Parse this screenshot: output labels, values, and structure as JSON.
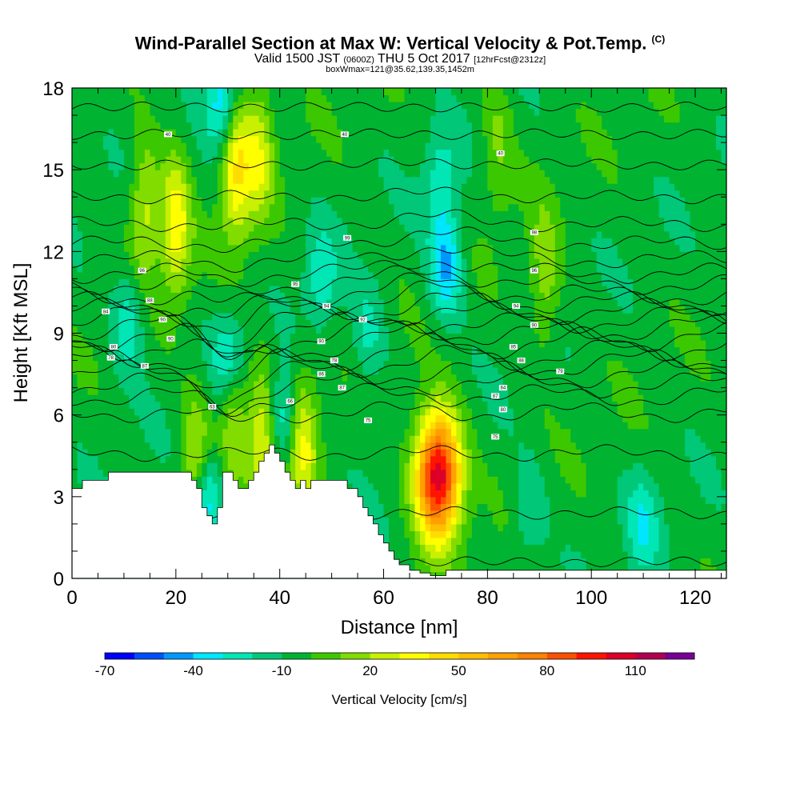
{
  "title": {
    "main": "Wind-Parallel Section at Max W: Vertical Velocity & Pot.Temp.",
    "copyright": "(C)",
    "valid_prefix": "Valid 1500 JST",
    "valid_zulu": "(0600Z)",
    "valid_date": "THU 5 Oct 2017",
    "forecast": "[12hrFcst@2312z]",
    "box": "boxWmax=121@35.62,139.35,1452m"
  },
  "chart_data": {
    "type": "heatmap",
    "xlabel": "Distance [nm]",
    "ylabel": "Height [Kft MSL]",
    "xlim": [
      0,
      126
    ],
    "ylim": [
      0,
      18
    ],
    "x_ticks": [
      0,
      20,
      40,
      60,
      80,
      100,
      120
    ],
    "y_ticks": [
      0,
      3,
      6,
      9,
      12,
      15,
      18
    ],
    "colorbar": {
      "label": "Vertical Velocity [cm/s]",
      "tick_labels": [
        -70,
        -40,
        -10,
        20,
        50,
        80,
        110
      ],
      "levels": [
        -70,
        -60,
        -50,
        -40,
        -30,
        -20,
        -10,
        0,
        10,
        20,
        30,
        40,
        50,
        60,
        70,
        80,
        90,
        100,
        110,
        120
      ],
      "colors": [
        "#0000ff",
        "#0050ff",
        "#0098ff",
        "#00e6ff",
        "#00e6b4",
        "#00c878",
        "#00b432",
        "#3cc800",
        "#82dc00",
        "#c8f000",
        "#ffff00",
        "#ffdc00",
        "#ffbe00",
        "#ffa000",
        "#ff8200",
        "#ff5000",
        "#ff1400",
        "#dc0028",
        "#b40050",
        "#780096"
      ]
    },
    "background_value": -5,
    "updrafts": [
      {
        "x": 70.5,
        "z": 3.8,
        "max": 118
      },
      {
        "x": 31.5,
        "z": 15.0,
        "max": 45
      },
      {
        "x": 31.0,
        "z": 6.5,
        "max": 35
      },
      {
        "x": 20.0,
        "z": 13.0,
        "max": 40
      },
      {
        "x": 14.0,
        "z": 13.5,
        "max": 30
      },
      {
        "x": 37.0,
        "z": 5.0,
        "max": 42
      },
      {
        "x": 44.5,
        "z": 4.8,
        "max": 35
      },
      {
        "x": 36.0,
        "z": 15.5,
        "max": 30
      },
      {
        "x": 24.0,
        "z": 4.0,
        "max": 35
      },
      {
        "x": 91.0,
        "z": 11.0,
        "max": 22
      },
      {
        "x": 82.0,
        "z": 16.0,
        "max": 16
      }
    ],
    "downdrafts": [
      {
        "x": 30.5,
        "z": 8.0,
        "min": -38
      },
      {
        "x": 72.0,
        "z": 11.5,
        "min": -38
      },
      {
        "x": 71.0,
        "z": 14.5,
        "min": -22
      },
      {
        "x": 11.0,
        "z": 9.5,
        "min": -25
      },
      {
        "x": 26.0,
        "z": 3.0,
        "min": -42
      },
      {
        "x": 40.0,
        "z": 5.8,
        "min": -35
      },
      {
        "x": 29.0,
        "z": 17.5,
        "min": -35
      },
      {
        "x": 48.0,
        "z": 11.0,
        "min": -22
      },
      {
        "x": 110.0,
        "z": 2.0,
        "min": -22
      },
      {
        "x": 88.0,
        "z": 2.5,
        "min": -16
      },
      {
        "x": 57.0,
        "z": 9.0,
        "min": -18
      }
    ],
    "terrain": {
      "x": [
        0,
        2,
        2,
        7,
        7,
        23,
        23,
        24,
        24,
        25,
        25,
        26,
        26,
        27,
        27,
        28,
        28,
        29,
        29,
        31,
        31,
        32,
        32,
        34,
        34,
        35,
        35,
        36,
        36,
        37,
        37,
        38,
        38,
        39,
        39,
        40,
        40,
        41,
        41,
        42,
        42,
        43,
        43,
        44,
        44,
        45,
        45,
        46,
        46,
        53,
        53,
        55,
        55,
        56,
        56,
        57,
        57,
        58,
        58,
        59,
        59,
        60,
        60,
        61,
        61,
        62,
        62,
        63,
        63,
        65,
        65,
        67,
        67,
        69,
        69,
        72,
        72,
        75,
        75,
        126
      ],
      "z": [
        3.3,
        3.3,
        3.6,
        3.6,
        3.9,
        3.9,
        3.6,
        3.6,
        3.3,
        3.3,
        2.6,
        2.6,
        2.3,
        2.3,
        2.0,
        2.0,
        2.6,
        2.6,
        3.9,
        3.9,
        3.6,
        3.6,
        3.3,
        3.3,
        3.6,
        3.6,
        3.9,
        3.9,
        4.3,
        4.3,
        4.6,
        4.6,
        4.9,
        4.9,
        4.6,
        4.6,
        4.3,
        4.3,
        3.9,
        3.9,
        3.6,
        3.6,
        3.3,
        3.3,
        3.6,
        3.6,
        3.3,
        3.3,
        3.6,
        3.6,
        3.3,
        3.3,
        3.0,
        3.0,
        2.6,
        2.6,
        2.3,
        2.3,
        2.0,
        2.0,
        1.6,
        1.6,
        1.3,
        1.3,
        1.0,
        1.0,
        0.7,
        0.7,
        0.5,
        0.5,
        0.3,
        0.3,
        0.2,
        0.2,
        0.1,
        0.1,
        0.3,
        0.3,
        0.3,
        0.3
      ]
    },
    "isentropes_z": [
      0.6,
      2.4,
      4.6,
      6.1,
      6.7,
      7.1,
      7.5,
      7.9,
      8.2,
      8.6,
      8.9,
      9.2,
      9.5,
      9.8,
      10.1,
      10.4,
      10.8,
      11.2,
      11.7,
      12.3,
      13.0,
      14.0,
      15.2,
      16.3,
      17.3
    ],
    "isentrope_labels": [
      {
        "x": 6.5,
        "z": 9.8,
        "text": "84"
      },
      {
        "x": 8,
        "z": 8.5,
        "text": "80"
      },
      {
        "x": 7.5,
        "z": 8.1,
        "text": "78"
      },
      {
        "x": 13.5,
        "z": 11.3,
        "text": "96"
      },
      {
        "x": 15,
        "z": 10.2,
        "text": "88"
      },
      {
        "x": 17.5,
        "z": 9.5,
        "text": "90"
      },
      {
        "x": 19,
        "z": 8.8,
        "text": "90"
      },
      {
        "x": 14,
        "z": 7.8,
        "text": "87"
      },
      {
        "x": 18.5,
        "z": 16.3,
        "text": "40"
      },
      {
        "x": 27,
        "z": 6.3,
        "text": "63"
      },
      {
        "x": 42,
        "z": 6.5,
        "text": "66"
      },
      {
        "x": 43,
        "z": 10.8,
        "text": "95"
      },
      {
        "x": 49,
        "z": 10.0,
        "text": "94"
      },
      {
        "x": 48,
        "z": 8.7,
        "text": "90"
      },
      {
        "x": 48,
        "z": 7.5,
        "text": "86"
      },
      {
        "x": 50.5,
        "z": 8.0,
        "text": "78"
      },
      {
        "x": 52,
        "z": 7.0,
        "text": "87"
      },
      {
        "x": 52.5,
        "z": 16.3,
        "text": "40"
      },
      {
        "x": 53,
        "z": 12.5,
        "text": "99"
      },
      {
        "x": 56,
        "z": 9.5,
        "text": "92"
      },
      {
        "x": 57,
        "z": 5.8,
        "text": "75"
      },
      {
        "x": 82.5,
        "z": 15.6,
        "text": "40"
      },
      {
        "x": 81.5,
        "z": 6.7,
        "text": "87"
      },
      {
        "x": 83,
        "z": 7.0,
        "text": "84"
      },
      {
        "x": 83,
        "z": 6.2,
        "text": "80"
      },
      {
        "x": 81.5,
        "z": 5.2,
        "text": "75"
      },
      {
        "x": 85,
        "z": 8.5,
        "text": "85"
      },
      {
        "x": 86.5,
        "z": 8.0,
        "text": "88"
      },
      {
        "x": 85.5,
        "z": 10.0,
        "text": "94"
      },
      {
        "x": 89,
        "z": 9.3,
        "text": "90"
      },
      {
        "x": 89,
        "z": 12.7,
        "text": "98"
      },
      {
        "x": 89,
        "z": 11.3,
        "text": "96"
      },
      {
        "x": 94,
        "z": 7.6,
        "text": "79"
      }
    ]
  }
}
